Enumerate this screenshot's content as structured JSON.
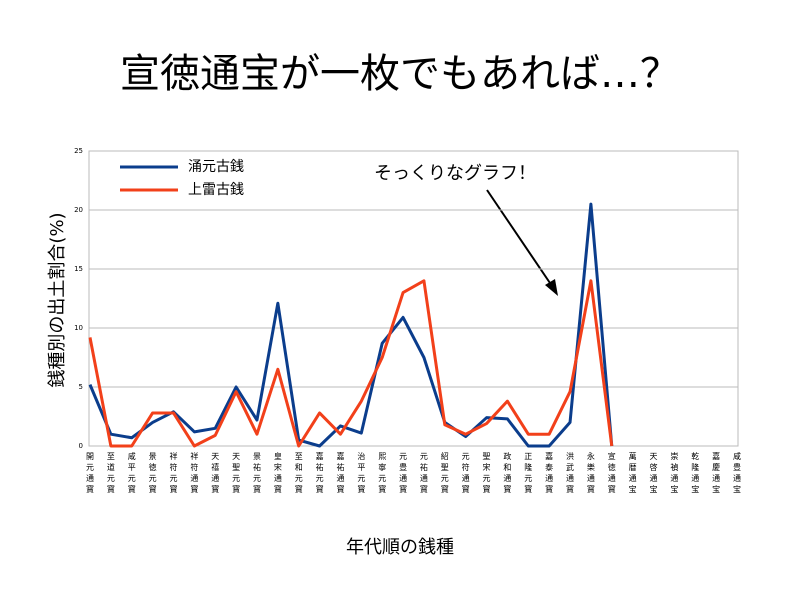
{
  "chart_data": {
    "type": "line",
    "title": "宣徳通宝が一枚でもあれば…？",
    "ylabel": "銭種別の出土割合(%)",
    "xlabel": "年代順の銭種",
    "annotation": "そっくりなグラフ！",
    "categories": [
      "開元通寳",
      "至道元寳",
      "咸平元寳",
      "景徳元寳",
      "祥符元寳",
      "祥符通寳",
      "天禧通寳",
      "天聖元寳",
      "景祐元寳",
      "皇宋通寳",
      "至和元寳",
      "嘉祐元寳",
      "嘉祐通寳",
      "治平元寳",
      "煕寧元寳",
      "元豊通寳",
      "元祐通寳",
      "紹聖元寳",
      "元符通寳",
      "聖宋元寳",
      "政和通寳",
      "正隆元寳",
      "嘉泰通寳",
      "洪武通寳",
      "永樂通寳",
      "宣徳通寳",
      "萬暦通宝",
      "天啓通宝",
      "崇禎通宝",
      "乾隆通宝",
      "嘉慶通宝",
      "咸豊通宝"
    ],
    "series": [
      {
        "name": "涌元古銭",
        "color": "#0b3d8c",
        "values": [
          5.2,
          1.0,
          0.7,
          2.0,
          2.9,
          1.2,
          1.5,
          5.0,
          2.2,
          12.1,
          0.5,
          0,
          1.7,
          1.1,
          8.7,
          10.9,
          7.5,
          2.0,
          0.8,
          2.4,
          2.3,
          0,
          0,
          2.0,
          20.5,
          0,
          null,
          null,
          null,
          null,
          null,
          null
        ]
      },
      {
        "name": "上雷古銭",
        "color": "#f2401a",
        "values": [
          9.2,
          0,
          0,
          2.8,
          2.8,
          0,
          0.9,
          4.6,
          1.0,
          6.5,
          0,
          2.8,
          1.0,
          3.8,
          7.5,
          13.0,
          14.0,
          1.8,
          1.0,
          1.9,
          3.8,
          1.0,
          1.0,
          4.6,
          14.0,
          0,
          null,
          null,
          null,
          null,
          null,
          null
        ]
      }
    ],
    "ylim": [
      0,
      25
    ],
    "yticks": [
      0,
      5,
      10,
      15,
      20,
      25
    ],
    "grid": true,
    "legend": "top-left"
  }
}
